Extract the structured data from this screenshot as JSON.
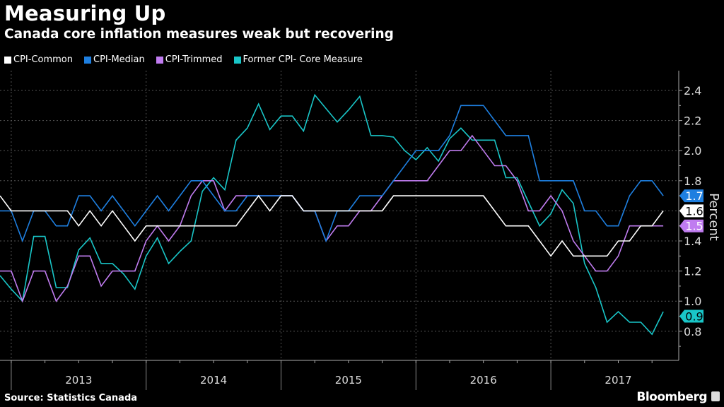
{
  "header": {
    "title": "Measuring Up",
    "subtitle": "Canada core inflation measures weak but recovering"
  },
  "footer": {
    "source": "Source: Statistics Canada",
    "brand": "Bloomberg"
  },
  "chart_data": {
    "type": "line",
    "title": "Measuring Up",
    "subtitle": "Canada core inflation measures weak but recovering",
    "xlabel": "",
    "ylabel": "Percent",
    "ylim": [
      0.6,
      2.5
    ],
    "yticks": [
      0.8,
      1.0,
      1.2,
      1.4,
      1.6,
      1.8,
      2.0,
      2.2,
      2.4
    ],
    "ytick_labels": [
      "0.8",
      "1.0",
      "1.2",
      "1.4",
      "1.6",
      "1.8",
      "2.0",
      "2.2",
      "2.4"
    ],
    "x_start": "2012-12",
    "x_end": "2017-11",
    "x_year_labels": [
      "2013",
      "2014",
      "2015",
      "2016",
      "2017"
    ],
    "grid": true,
    "legend_position": "top-left",
    "series": [
      {
        "name": "CPI-Common",
        "color": "#ffffff",
        "end_label": "1.6",
        "values": [
          1.7,
          1.6,
          1.6,
          1.6,
          1.6,
          1.6,
          1.6,
          1.5,
          1.6,
          1.5,
          1.6,
          1.5,
          1.4,
          1.5,
          1.5,
          1.5,
          1.5,
          1.5,
          1.5,
          1.5,
          1.5,
          1.5,
          1.6,
          1.7,
          1.6,
          1.7,
          1.7,
          1.6,
          1.6,
          1.6,
          1.6,
          1.6,
          1.6,
          1.6,
          1.6,
          1.7,
          1.7,
          1.7,
          1.7,
          1.7,
          1.7,
          1.7,
          1.7,
          1.7,
          1.6,
          1.5,
          1.5,
          1.5,
          1.4,
          1.3,
          1.4,
          1.3,
          1.3,
          1.3,
          1.3,
          1.4,
          1.4,
          1.5,
          1.5,
          1.6
        ]
      },
      {
        "name": "CPI-Median",
        "color": "#1e7fe0",
        "end_label": "1.7",
        "values": [
          1.6,
          1.6,
          1.4,
          1.6,
          1.6,
          1.5,
          1.5,
          1.7,
          1.7,
          1.6,
          1.7,
          1.6,
          1.5,
          1.6,
          1.7,
          1.6,
          1.7,
          1.8,
          1.8,
          1.7,
          1.6,
          1.6,
          1.7,
          1.7,
          1.7,
          1.7,
          1.7,
          1.6,
          1.6,
          1.4,
          1.6,
          1.6,
          1.7,
          1.7,
          1.7,
          1.8,
          1.9,
          2.0,
          2.0,
          2.0,
          2.1,
          2.3,
          2.3,
          2.3,
          2.2,
          2.1,
          2.1,
          2.1,
          1.8,
          1.8,
          1.8,
          1.8,
          1.6,
          1.6,
          1.5,
          1.5,
          1.7,
          1.8,
          1.8,
          1.7
        ]
      },
      {
        "name": "CPI-Trimmed",
        "color": "#c07cf0",
        "end_label": "1.5",
        "values": [
          1.2,
          1.2,
          1.0,
          1.2,
          1.2,
          1.0,
          1.1,
          1.3,
          1.3,
          1.1,
          1.2,
          1.2,
          1.2,
          1.4,
          1.5,
          1.4,
          1.5,
          1.7,
          1.8,
          1.8,
          1.6,
          1.7,
          1.7,
          1.7,
          1.7,
          1.7,
          1.7,
          1.6,
          1.6,
          1.4,
          1.5,
          1.5,
          1.6,
          1.6,
          1.7,
          1.8,
          1.8,
          1.8,
          1.8,
          1.9,
          2.0,
          2.0,
          2.1,
          2.0,
          1.9,
          1.9,
          1.8,
          1.6,
          1.6,
          1.7,
          1.6,
          1.4,
          1.3,
          1.2,
          1.2,
          1.3,
          1.5,
          1.5,
          1.5,
          1.5
        ]
      },
      {
        "name": "Former CPI- Core Measure",
        "color": "#19c6c8",
        "end_label": "0.9",
        "values": [
          1.17,
          1.08,
          1.0,
          1.43,
          1.43,
          1.09,
          1.09,
          1.34,
          1.42,
          1.25,
          1.25,
          1.18,
          1.08,
          1.3,
          1.42,
          1.25,
          1.33,
          1.4,
          1.73,
          1.82,
          1.74,
          2.07,
          2.15,
          2.31,
          2.14,
          2.23,
          2.23,
          2.13,
          2.37,
          2.28,
          2.19,
          2.27,
          2.36,
          2.1,
          2.1,
          2.09,
          2.0,
          1.94,
          2.02,
          1.93,
          2.08,
          2.15,
          2.07,
          2.07,
          2.07,
          1.82,
          1.82,
          1.66,
          1.5,
          1.58,
          1.74,
          1.65,
          1.25,
          1.09,
          0.86,
          0.93,
          0.86,
          0.86,
          0.78,
          0.93
        ]
      }
    ]
  }
}
